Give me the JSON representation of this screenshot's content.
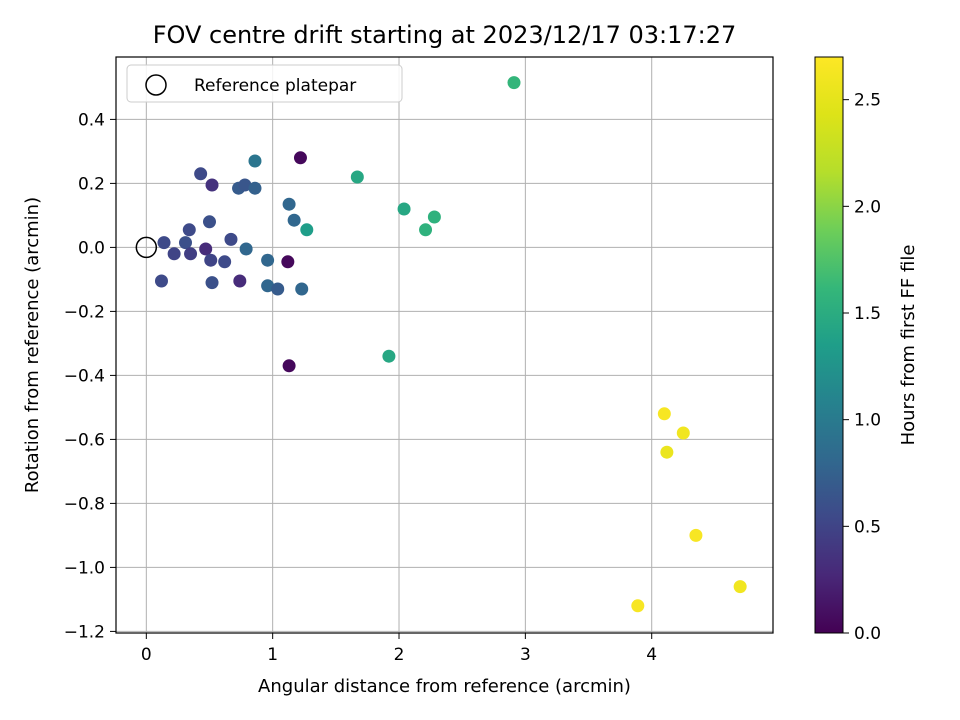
{
  "chart_data": {
    "type": "scatter",
    "title": "FOV centre drift starting at 2023/12/17 03:17:27",
    "xlabel": "Angular distance from reference (arcmin)",
    "ylabel": "Rotation from reference (arcmin)",
    "xlim": [
      -0.24,
      4.96
    ],
    "ylim": [
      -1.205,
      0.595
    ],
    "xticks": [
      0,
      1,
      2,
      3,
      4
    ],
    "yticks": [
      -1.2,
      -1.0,
      -0.8,
      -0.6,
      -0.4,
      -0.2,
      0.0,
      0.2,
      0.4
    ],
    "xtick_labels": [
      "0",
      "1",
      "2",
      "3",
      "4"
    ],
    "ytick_labels": [
      "−1.2",
      "−1.0",
      "−0.8",
      "−0.6",
      "−0.4",
      "−0.2",
      "0.0",
      "0.2",
      "0.4"
    ],
    "grid": true,
    "colormap": "viridis",
    "colorbar": {
      "label": "Hours from first FF file",
      "range": [
        0,
        2.7
      ],
      "ticks": [
        0.0,
        0.5,
        1.0,
        1.5,
        2.0,
        2.5
      ],
      "tick_labels": [
        "0.0",
        "0.5",
        "1.0",
        "1.5",
        "2.0",
        "2.5"
      ]
    },
    "legend": {
      "position": "top-left",
      "entries": [
        "Reference platepar"
      ]
    },
    "reference_point": {
      "x": 0,
      "y": 0
    },
    "points": [
      {
        "x": 0.12,
        "y": -0.105,
        "c": 0.55
      },
      {
        "x": 0.14,
        "y": 0.015,
        "c": 0.55
      },
      {
        "x": 0.22,
        "y": -0.02,
        "c": 0.5
      },
      {
        "x": 0.31,
        "y": 0.015,
        "c": 0.6
      },
      {
        "x": 0.34,
        "y": 0.055,
        "c": 0.55
      },
      {
        "x": 0.35,
        "y": -0.02,
        "c": 0.45
      },
      {
        "x": 0.43,
        "y": 0.23,
        "c": 0.55
      },
      {
        "x": 0.47,
        "y": -0.005,
        "c": 0.3
      },
      {
        "x": 0.5,
        "y": 0.08,
        "c": 0.6
      },
      {
        "x": 0.51,
        "y": -0.04,
        "c": 0.5
      },
      {
        "x": 0.52,
        "y": 0.195,
        "c": 0.35
      },
      {
        "x": 0.52,
        "y": -0.11,
        "c": 0.6
      },
      {
        "x": 0.62,
        "y": -0.045,
        "c": 0.55
      },
      {
        "x": 0.67,
        "y": 0.025,
        "c": 0.55
      },
      {
        "x": 0.73,
        "y": 0.185,
        "c": 0.7
      },
      {
        "x": 0.74,
        "y": -0.105,
        "c": 0.3
      },
      {
        "x": 0.78,
        "y": 0.195,
        "c": 0.65
      },
      {
        "x": 0.79,
        "y": -0.005,
        "c": 0.8
      },
      {
        "x": 0.86,
        "y": 0.27,
        "c": 0.95
      },
      {
        "x": 0.86,
        "y": 0.185,
        "c": 0.75
      },
      {
        "x": 0.96,
        "y": -0.04,
        "c": 0.8
      },
      {
        "x": 0.96,
        "y": -0.12,
        "c": 0.8
      },
      {
        "x": 1.04,
        "y": -0.13,
        "c": 0.7
      },
      {
        "x": 1.12,
        "y": -0.045,
        "c": 0.05
      },
      {
        "x": 1.13,
        "y": 0.135,
        "c": 0.8
      },
      {
        "x": 1.13,
        "y": -0.37,
        "c": 0.05
      },
      {
        "x": 1.17,
        "y": 0.085,
        "c": 0.8
      },
      {
        "x": 1.22,
        "y": 0.28,
        "c": 0.05
      },
      {
        "x": 1.23,
        "y": -0.13,
        "c": 0.8
      },
      {
        "x": 1.27,
        "y": 0.055,
        "c": 1.35
      },
      {
        "x": 1.67,
        "y": 0.22,
        "c": 1.45
      },
      {
        "x": 1.92,
        "y": -0.34,
        "c": 1.45
      },
      {
        "x": 2.04,
        "y": 0.12,
        "c": 1.45
      },
      {
        "x": 2.21,
        "y": 0.055,
        "c": 1.55
      },
      {
        "x": 2.28,
        "y": 0.095,
        "c": 1.55
      },
      {
        "x": 2.91,
        "y": 0.515,
        "c": 1.6
      },
      {
        "x": 3.89,
        "y": -1.12,
        "c": 2.65
      },
      {
        "x": 4.1,
        "y": -0.52,
        "c": 2.65
      },
      {
        "x": 4.12,
        "y": -0.64,
        "c": 2.55
      },
      {
        "x": 4.25,
        "y": -0.58,
        "c": 2.6
      },
      {
        "x": 4.35,
        "y": -0.9,
        "c": 2.65
      },
      {
        "x": 4.7,
        "y": -1.06,
        "c": 2.6
      }
    ]
  }
}
